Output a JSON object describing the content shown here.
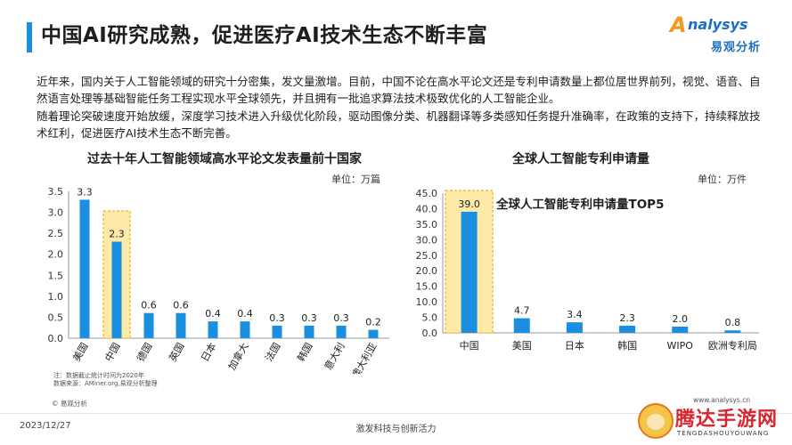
{
  "header": {
    "title": "中国AI研究成熟，促进医疗AI技术生态不断丰富",
    "logo_top": "nalysys",
    "logo_letter": "A",
    "logo_bottom": "易观分析"
  },
  "body": {
    "paragraph1": "近年来，国内关于人工智能领域的研究十分密集，发文量激增。目前，中国不论在高水平论文还是专利申请数量上都位居世界前列，视觉、语音、自然语言处理等基础智能任务工程实现水平全球领先，并且拥有一批追求算法技术极致优化的人工智能企业。",
    "paragraph2": "随着理论突破速度开始放缓，深度学习技术进入升级优化阶段，驱动图像分类、机器翻译等多类感知任务提升准确率，在政策的支持下，持续释放技术红利，促进医疗AI技术生态不断完善。"
  },
  "colors": {
    "bar": "#1a8fe0",
    "highlight_fill": "#fde9a8",
    "highlight_border": "#f0b429",
    "accent": "#1a8fe0"
  },
  "chart_data": [
    {
      "type": "bar",
      "title": "过去十年人工智能领域高水平论文发表量前十国家",
      "unit": "单位：万篇",
      "categories": [
        "美国",
        "中国",
        "德国",
        "英国",
        "日本",
        "加拿大",
        "法国",
        "韩国",
        "意大利",
        "澳大利亚"
      ],
      "values": [
        3.3,
        2.3,
        0.6,
        0.6,
        0.4,
        0.4,
        0.3,
        0.3,
        0.3,
        0.2
      ],
      "value_labels": [
        "3.3",
        "2.3",
        "0.6",
        "0.6",
        "0.4",
        "0.4",
        "0.3",
        "0.3",
        "0.3",
        "0.2"
      ],
      "ylim": [
        0,
        3.5
      ],
      "yticks": [
        "0.0",
        "0.5",
        "1.0",
        "1.5",
        "2.0",
        "2.5",
        "3.0",
        "3.5"
      ],
      "highlight": "中国",
      "grid": false
    },
    {
      "type": "bar",
      "title": "全球人工智能专利申请量",
      "subtitle": "全球人工智能专利申请量TOP5",
      "unit": "单位：万件",
      "categories": [
        "中国",
        "美国",
        "日本",
        "韩国",
        "WIPO",
        "欧洲专利局"
      ],
      "values": [
        39.0,
        4.7,
        3.4,
        2.3,
        2.0,
        0.8
      ],
      "value_labels": [
        "39.0",
        "4.7",
        "3.4",
        "2.3",
        "2.0",
        "0.8"
      ],
      "ylim": [
        0,
        45
      ],
      "yticks": [
        "0.0",
        "5.0",
        "10.0",
        "15.0",
        "20.0",
        "25.0",
        "30.0",
        "35.0",
        "40.0",
        "45.0"
      ],
      "highlight": "中国",
      "grid": false
    }
  ],
  "notes": {
    "line1": "注：数据截止统计时间为2020年",
    "line2": "数据来源：AMiner.org,易观分析整理"
  },
  "footer": {
    "copyright": "© 易观分析",
    "website": "www.analysys.cn",
    "date": "2023/12/27",
    "center": "激发科技与创新活力"
  },
  "watermark": {
    "title": "腾达手游网",
    "subtitle": "TENGDASHOUYOUWANG"
  }
}
